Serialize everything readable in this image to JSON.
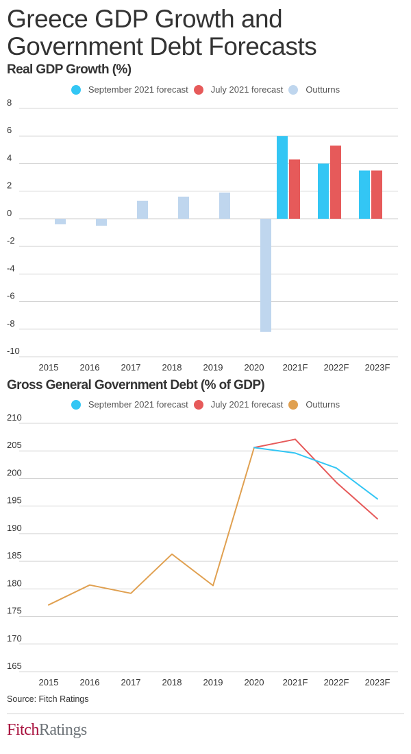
{
  "title": "Greece GDP Growth and Government Debt Forecasts",
  "title_lines": [
    "Greece GDP Growth and",
    "Government Debt Forecasts"
  ],
  "source": "Source: Fitch Ratings",
  "logo": {
    "part1": "Fitch",
    "part2": "Ratings"
  },
  "colors": {
    "september": "#33c6f4",
    "july": "#e65a5a",
    "outturns_bar": "#bfd6ee",
    "outturns_line": "#e0a050",
    "grid": "#d4d4d4"
  },
  "chart_data": [
    {
      "type": "bar",
      "title": "Real GDP Growth (%)",
      "xlabel": "",
      "ylabel": "",
      "categories": [
        "2015",
        "2016",
        "2017",
        "2018",
        "2019",
        "2020",
        "2021F",
        "2022F",
        "2023F"
      ],
      "yticks": [
        "8",
        "6",
        "4",
        "2",
        "0",
        "-2",
        "-4",
        "-6",
        "-8",
        "-10"
      ],
      "ylim": [
        -10,
        8
      ],
      "grid": true,
      "legend_position": "top-center",
      "series": [
        {
          "name": "September 2021 forecast",
          "key": "september",
          "values": [
            null,
            null,
            null,
            null,
            null,
            null,
            6.0,
            4.0,
            3.5
          ]
        },
        {
          "name": "July 2021 forecast",
          "key": "july",
          "values": [
            null,
            null,
            null,
            null,
            null,
            null,
            4.3,
            5.3,
            3.5
          ]
        },
        {
          "name": "Outturns",
          "key": "outturns_bar",
          "values": [
            -0.4,
            -0.5,
            1.3,
            1.6,
            1.9,
            -8.2,
            null,
            null,
            null
          ]
        }
      ]
    },
    {
      "type": "line",
      "title": "Gross General Government Debt (% of GDP)",
      "xlabel": "",
      "ylabel": "",
      "categories": [
        "2015",
        "2016",
        "2017",
        "2018",
        "2019",
        "2020",
        "2021F",
        "2022F",
        "2023F"
      ],
      "yticks": [
        "210",
        "205",
        "200",
        "195",
        "190",
        "185",
        "180",
        "175",
        "170",
        "165"
      ],
      "ylim": [
        165,
        210
      ],
      "grid": true,
      "legend_position": "top-center",
      "series": [
        {
          "name": "September 2021 forecast",
          "key": "september",
          "values": [
            null,
            null,
            null,
            null,
            null,
            205.6,
            204.6,
            201.9,
            196.3
          ]
        },
        {
          "name": "July 2021 forecast",
          "key": "july",
          "values": [
            null,
            null,
            null,
            null,
            null,
            205.6,
            207.1,
            199.3,
            192.7
          ]
        },
        {
          "name": "Outturns",
          "key": "outturns_line",
          "values": [
            177.1,
            180.7,
            179.2,
            186.3,
            180.6,
            205.6,
            null,
            null,
            null
          ]
        }
      ]
    }
  ]
}
